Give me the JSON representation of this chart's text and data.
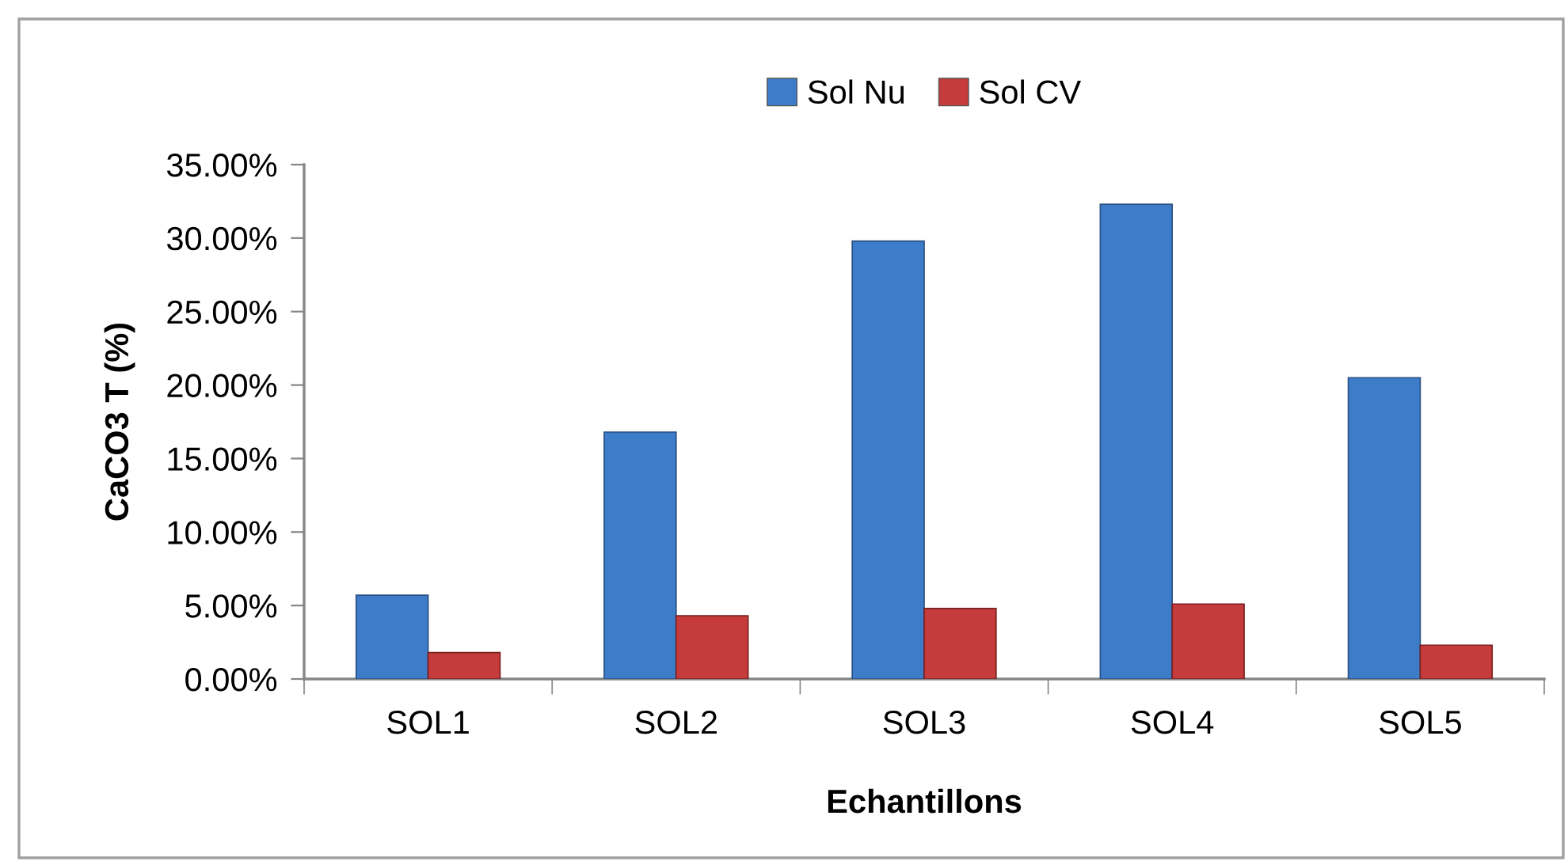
{
  "chart_data": {
    "type": "bar",
    "xlabel": "Echantillons",
    "ylabel": "CaCO3 T (%)",
    "categories": [
      "SOL1",
      "SOL2",
      "SOL3",
      "SOL4",
      "SOL5"
    ],
    "series": [
      {
        "name": "Sol Nu",
        "color": "#3d7cc9",
        "values": [
          5.7,
          16.8,
          29.8,
          32.3,
          20.5
        ]
      },
      {
        "name": "Sol CV",
        "color": "#c63b3b",
        "values": [
          1.8,
          4.3,
          4.8,
          5.1,
          2.3
        ]
      }
    ],
    "ylim": [
      0,
      35
    ],
    "yticks": [
      {
        "value": 0,
        "label": "0.00%"
      },
      {
        "value": 5,
        "label": "5.00%"
      },
      {
        "value": 10,
        "label": "10.00%"
      },
      {
        "value": 15,
        "label": "15.00%"
      },
      {
        "value": 20,
        "label": "20.00%"
      },
      {
        "value": 25,
        "label": "25.00%"
      },
      {
        "value": 30,
        "label": "30.00%"
      },
      {
        "value": 35,
        "label": "35.00%"
      }
    ],
    "grid": false,
    "legend": "top"
  }
}
